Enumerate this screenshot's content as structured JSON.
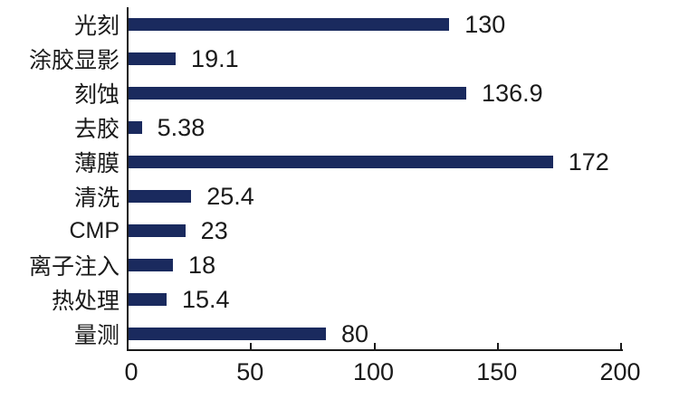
{
  "chart_data": {
    "type": "bar",
    "orientation": "horizontal",
    "title": "",
    "xlabel": "",
    "ylabel": "",
    "categories": [
      "光刻",
      "涂胶显影",
      "刻蚀",
      "去胶",
      "薄膜",
      "清洗",
      "CMP",
      "离子注入",
      "热处理",
      "量测"
    ],
    "values": [
      130,
      19.1,
      136.9,
      5.38,
      172,
      25.4,
      23,
      18,
      15.4,
      80
    ],
    "value_labels": [
      "130",
      "19.1",
      "136.9",
      "5.38",
      "172",
      "25.4",
      "23",
      "18",
      "15.4",
      "80"
    ],
    "xlim": [
      0,
      200
    ],
    "x_ticks": [
      0,
      50,
      100,
      150,
      200
    ],
    "x_tick_labels": [
      "0",
      "50",
      "100",
      "150",
      "200"
    ],
    "grid": false,
    "legend": false,
    "colors": {
      "bar": "#1A2A5E",
      "axis": "#1A1A1A",
      "text": "#1A1A1A",
      "background": "#FFFFFF"
    }
  }
}
